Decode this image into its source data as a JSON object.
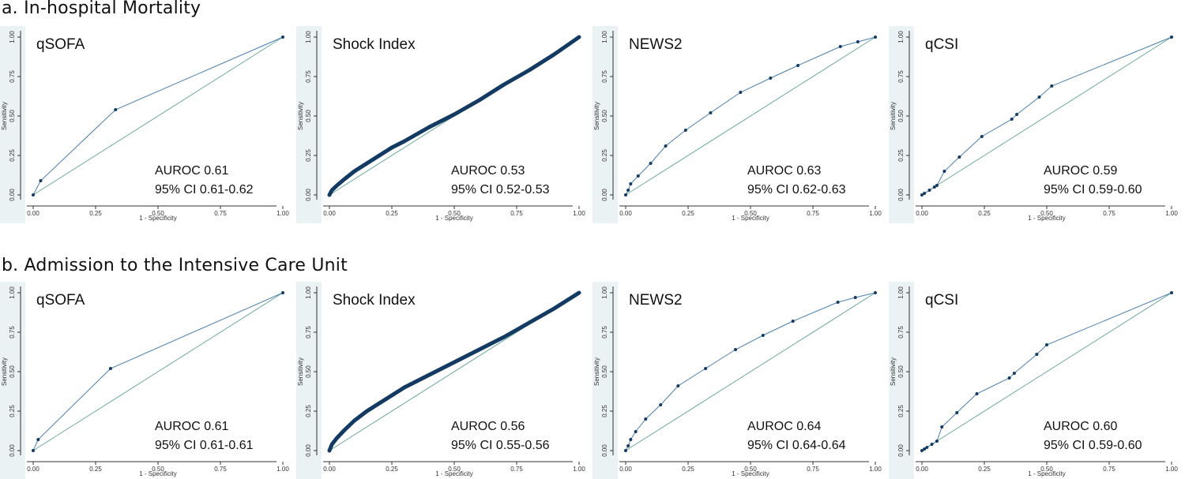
{
  "rows": [
    {
      "title": "a. In-hospital Mortality"
    },
    {
      "title": "b. Admission to the Intensive Care Unit"
    }
  ],
  "chart_data": [
    {
      "type": "line",
      "row": 0,
      "title": "qSOFA",
      "auroc": "AUROC 0.61",
      "ci": "95% CI 0.61-0.62",
      "xlabel": "1 - Specificity",
      "ylabel": "Sensitivity",
      "xlim": [
        0,
        1
      ],
      "ylim": [
        0,
        1
      ],
      "ticks": [
        "0.00",
        "0.25",
        "0.50",
        "0.75",
        "1.00"
      ],
      "style": "points",
      "x": [
        0,
        0.03,
        0.33,
        1
      ],
      "y": [
        0,
        0.09,
        0.54,
        1
      ]
    },
    {
      "type": "line",
      "row": 0,
      "title": "Shock Index",
      "auroc": "AUROC 0.53",
      "ci": "95% CI 0.52-0.53",
      "xlabel": "1 - Specificity",
      "ylabel": "Sensitivity",
      "xlim": [
        0,
        1
      ],
      "ylim": [
        0,
        1
      ],
      "ticks": [
        "0.00",
        "0.25",
        "0.50",
        "0.75",
        "1.00"
      ],
      "style": "dense",
      "x": [
        0,
        0.01,
        0.03,
        0.06,
        0.1,
        0.15,
        0.2,
        0.25,
        0.3,
        0.4,
        0.5,
        0.6,
        0.7,
        0.8,
        0.9,
        1
      ],
      "y": [
        0,
        0.03,
        0.06,
        0.1,
        0.15,
        0.2,
        0.25,
        0.3,
        0.34,
        0.43,
        0.51,
        0.6,
        0.7,
        0.79,
        0.89,
        1
      ]
    },
    {
      "type": "line",
      "row": 0,
      "title": "NEWS2",
      "auroc": "AUROC 0.63",
      "ci": "95% CI 0.62-0.63",
      "xlabel": "1 - Specificity",
      "ylabel": "Sensitivity",
      "xlim": [
        0,
        1
      ],
      "ylim": [
        0,
        1
      ],
      "ticks": [
        "0.00",
        "0.25",
        "0.50",
        "0.75",
        "1.00"
      ],
      "style": "points",
      "x": [
        0,
        0.01,
        0.02,
        0.05,
        0.1,
        0.16,
        0.24,
        0.34,
        0.46,
        0.58,
        0.69,
        0.86,
        0.93,
        1
      ],
      "y": [
        0,
        0.03,
        0.07,
        0.12,
        0.2,
        0.31,
        0.41,
        0.52,
        0.65,
        0.74,
        0.82,
        0.94,
        0.97,
        1
      ]
    },
    {
      "type": "line",
      "row": 0,
      "title": "qCSI",
      "auroc": "AUROC 0.59",
      "ci": "95% CI 0.59-0.60",
      "xlabel": "1 - Specificity",
      "ylabel": "Sensitivity",
      "xlim": [
        0,
        1
      ],
      "ylim": [
        0,
        1
      ],
      "ticks": [
        "0.00",
        "0.25",
        "0.50",
        "0.75",
        "1.00"
      ],
      "style": "points",
      "x": [
        0,
        0.01,
        0.03,
        0.05,
        0.06,
        0.09,
        0.15,
        0.24,
        0.36,
        0.38,
        0.47,
        0.52,
        1
      ],
      "y": [
        0,
        0.01,
        0.03,
        0.05,
        0.06,
        0.15,
        0.24,
        0.37,
        0.48,
        0.51,
        0.62,
        0.69,
        1
      ]
    },
    {
      "type": "line",
      "row": 1,
      "title": "qSOFA",
      "auroc": "AUROC 0.61",
      "ci": "95% CI 0.61-0.61",
      "xlabel": "1 - Specificity",
      "ylabel": "Sensitivity",
      "xlim": [
        0,
        1
      ],
      "ylim": [
        0,
        1
      ],
      "ticks": [
        "0.00",
        "0.25",
        "0.50",
        "0.75",
        "1.00"
      ],
      "style": "points",
      "x": [
        0,
        0.02,
        0.31,
        1
      ],
      "y": [
        0,
        0.07,
        0.52,
        1
      ]
    },
    {
      "type": "line",
      "row": 1,
      "title": "Shock Index",
      "auroc": "AUROC 0.56",
      "ci": "95% CI 0.55-0.56",
      "xlabel": "1 - Specificity",
      "ylabel": "Sensitivity",
      "xlim": [
        0,
        1
      ],
      "ylim": [
        0,
        1
      ],
      "ticks": [
        "0.00",
        "0.25",
        "0.50",
        "0.75",
        "1.00"
      ],
      "style": "dense",
      "x": [
        0,
        0.01,
        0.03,
        0.06,
        0.1,
        0.15,
        0.2,
        0.25,
        0.3,
        0.4,
        0.5,
        0.6,
        0.7,
        0.8,
        0.9,
        1
      ],
      "y": [
        0,
        0.04,
        0.08,
        0.13,
        0.19,
        0.25,
        0.3,
        0.35,
        0.4,
        0.48,
        0.56,
        0.64,
        0.72,
        0.81,
        0.9,
        1
      ]
    },
    {
      "type": "line",
      "row": 1,
      "title": "NEWS2",
      "auroc": "AUROC 0.64",
      "ci": "95% CI 0.64-0.64",
      "xlabel": "1 - Specificity",
      "ylabel": "Sensitivity",
      "xlim": [
        0,
        1
      ],
      "ylim": [
        0,
        1
      ],
      "ticks": [
        "0.00",
        "0.25",
        "0.50",
        "0.75",
        "1.00"
      ],
      "style": "points",
      "x": [
        0,
        0.01,
        0.02,
        0.04,
        0.08,
        0.14,
        0.21,
        0.32,
        0.44,
        0.55,
        0.67,
        0.85,
        0.92,
        1
      ],
      "y": [
        0,
        0.03,
        0.07,
        0.12,
        0.2,
        0.29,
        0.41,
        0.52,
        0.64,
        0.73,
        0.82,
        0.94,
        0.97,
        1
      ]
    },
    {
      "type": "line",
      "row": 1,
      "title": "qCSI",
      "auroc": "AUROC 0.60",
      "ci": "95% CI 0.59-0.60",
      "xlabel": "1 - Specificity",
      "ylabel": "Sensitivity",
      "xlim": [
        0,
        1
      ],
      "ylim": [
        0,
        1
      ],
      "ticks": [
        "0.00",
        "0.25",
        "0.50",
        "0.75",
        "1.00"
      ],
      "style": "points",
      "x": [
        0,
        0.01,
        0.02,
        0.04,
        0.06,
        0.08,
        0.14,
        0.22,
        0.35,
        0.37,
        0.46,
        0.5,
        1
      ],
      "y": [
        0,
        0.01,
        0.02,
        0.04,
        0.06,
        0.15,
        0.24,
        0.36,
        0.46,
        0.49,
        0.61,
        0.67,
        1
      ]
    }
  ]
}
